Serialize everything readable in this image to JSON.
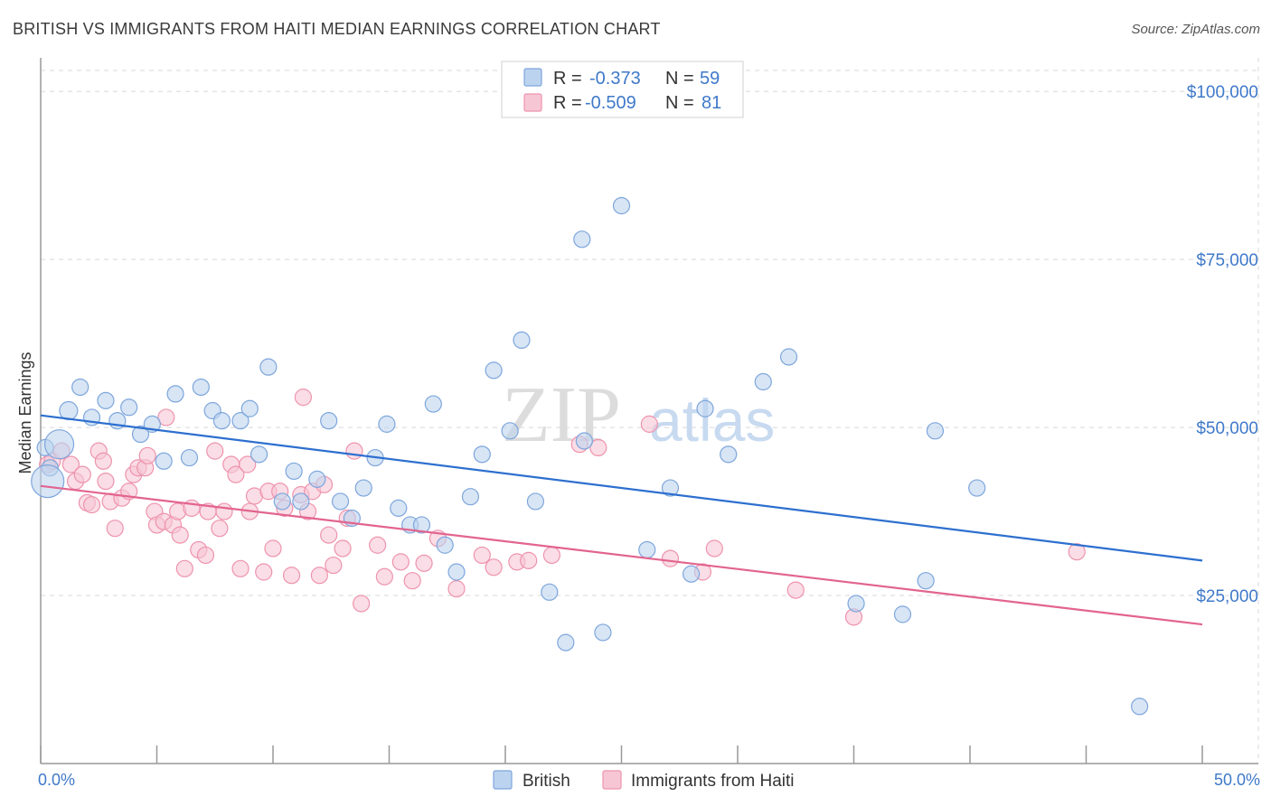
{
  "title": "BRITISH VS IMMIGRANTS FROM HAITI MEDIAN EARNINGS CORRELATION CHART",
  "source": "Source: ZipAtlas.com",
  "watermark": {
    "zip": "ZIP",
    "atlas": "atlas"
  },
  "colors": {
    "british_fill": "#bcd3ef",
    "british_stroke": "#7ea6dc",
    "british_line": "#2d6fcf",
    "haiti_fill": "#f6c6d5",
    "haiti_stroke": "#ee93ad",
    "haiti_line": "#e2648f",
    "grid": "#d8d8d8",
    "axis_text": "#3f79c9"
  },
  "legend": {
    "rows": [
      {
        "r_label": "R =",
        "r_value": "-0.373",
        "n_label": "N =",
        "n_value": "59"
      },
      {
        "r_label": "R =",
        "r_value": "-0.509",
        "n_label": "N =",
        "n_value": "81"
      }
    ]
  },
  "chart_data": {
    "type": "scatter",
    "title": "BRITISH VS IMMIGRANTS FROM HAITI MEDIAN EARNINGS CORRELATION CHART",
    "xlabel": "",
    "ylabel": "Median Earnings",
    "xlim": [
      0,
      50
    ],
    "ylim": [
      0,
      105000
    ],
    "x_tick_labels": [
      "0.0%",
      "50.0%"
    ],
    "y_ticks": [
      25000,
      50000,
      75000,
      100000
    ],
    "y_tick_labels": [
      "$25,000",
      "$50,000",
      "$75,000",
      "$100,000"
    ],
    "grid": true,
    "legend_position": "top-center",
    "series": [
      {
        "name": "British",
        "trend": {
          "x": [
            0,
            50
          ],
          "y": [
            51800,
            30200
          ]
        },
        "points": [
          [
            0.2,
            47000,
            9
          ],
          [
            0.4,
            44000,
            9
          ],
          [
            0.3,
            42000,
            18
          ],
          [
            0.8,
            47500,
            16
          ],
          [
            1.2,
            52500,
            10
          ],
          [
            1.7,
            56000,
            9
          ],
          [
            2.2,
            51500,
            9
          ],
          [
            2.8,
            54000,
            9
          ],
          [
            3.3,
            51000,
            9
          ],
          [
            3.8,
            53000,
            9
          ],
          [
            4.3,
            49000,
            9
          ],
          [
            4.8,
            50500,
            9
          ],
          [
            5.3,
            45000,
            9
          ],
          [
            5.8,
            55000,
            9
          ],
          [
            6.4,
            45500,
            9
          ],
          [
            6.9,
            56000,
            9
          ],
          [
            7.4,
            52500,
            9
          ],
          [
            7.8,
            51000,
            9
          ],
          [
            8.6,
            51000,
            9
          ],
          [
            9.0,
            52800,
            9
          ],
          [
            9.4,
            46000,
            9
          ],
          [
            9.8,
            59000,
            9
          ],
          [
            10.4,
            39000,
            9
          ],
          [
            10.9,
            43500,
            9
          ],
          [
            11.2,
            39000,
            9
          ],
          [
            11.9,
            42300,
            9
          ],
          [
            12.4,
            51000,
            9
          ],
          [
            12.9,
            39000,
            9
          ],
          [
            13.4,
            36500,
            9
          ],
          [
            13.9,
            41000,
            9
          ],
          [
            14.4,
            45500,
            9
          ],
          [
            14.9,
            50500,
            9
          ],
          [
            15.4,
            38000,
            9
          ],
          [
            15.9,
            35500,
            9
          ],
          [
            16.4,
            35500,
            9
          ],
          [
            16.9,
            53500,
            9
          ],
          [
            17.4,
            32500,
            9
          ],
          [
            17.9,
            28500,
            9
          ],
          [
            18.5,
            39700,
            9
          ],
          [
            19.0,
            46000,
            9
          ],
          [
            19.5,
            58500,
            9
          ],
          [
            20.2,
            49500,
            9
          ],
          [
            20.7,
            63000,
            9
          ],
          [
            21.3,
            39000,
            9
          ],
          [
            21.9,
            25500,
            9
          ],
          [
            22.6,
            18000,
            9
          ],
          [
            23.3,
            78000,
            9
          ],
          [
            23.4,
            48000,
            9
          ],
          [
            24.2,
            19500,
            9
          ],
          [
            25.0,
            83000,
            9
          ],
          [
            26.1,
            31800,
            9
          ],
          [
            27.1,
            41000,
            9
          ],
          [
            28.0,
            28200,
            9
          ],
          [
            28.6,
            52800,
            9
          ],
          [
            29.6,
            46000,
            9
          ],
          [
            31.1,
            56800,
            9
          ],
          [
            32.2,
            60500,
            9
          ],
          [
            35.1,
            23800,
            9
          ],
          [
            37.1,
            22200,
            9
          ],
          [
            38.1,
            27200,
            9
          ],
          [
            38.5,
            49500,
            9
          ],
          [
            40.3,
            41000,
            9
          ],
          [
            47.3,
            8500,
            9
          ]
        ]
      },
      {
        "name": "Immigrants from Haiti",
        "trend": {
          "x": [
            0,
            50
          ],
          "y": [
            41300,
            20700
          ]
        },
        "points": [
          [
            0.3,
            44500,
            9
          ],
          [
            0.5,
            45000,
            9
          ],
          [
            0.9,
            46500,
            9
          ],
          [
            1.3,
            44500,
            9
          ],
          [
            1.5,
            42000,
            9
          ],
          [
            1.8,
            43000,
            9
          ],
          [
            2.0,
            38800,
            9
          ],
          [
            2.2,
            38500,
            9
          ],
          [
            2.5,
            46500,
            9
          ],
          [
            2.7,
            45000,
            9
          ],
          [
            2.8,
            42000,
            9
          ],
          [
            3.0,
            39000,
            9
          ],
          [
            3.2,
            35000,
            9
          ],
          [
            3.5,
            39500,
            9
          ],
          [
            3.8,
            40500,
            9
          ],
          [
            4.0,
            43000,
            9
          ],
          [
            4.2,
            44000,
            9
          ],
          [
            4.5,
            44000,
            9
          ],
          [
            4.6,
            45800,
            9
          ],
          [
            4.9,
            37500,
            9
          ],
          [
            5.0,
            35500,
            9
          ],
          [
            5.3,
            36000,
            9
          ],
          [
            5.4,
            51500,
            9
          ],
          [
            5.7,
            35500,
            9
          ],
          [
            5.9,
            37500,
            9
          ],
          [
            6.0,
            34000,
            9
          ],
          [
            6.2,
            29000,
            9
          ],
          [
            6.5,
            38000,
            9
          ],
          [
            6.8,
            31800,
            9
          ],
          [
            7.1,
            31000,
            9
          ],
          [
            7.2,
            37500,
            9
          ],
          [
            7.5,
            46500,
            9
          ],
          [
            7.7,
            35000,
            9
          ],
          [
            7.9,
            37500,
            9
          ],
          [
            8.2,
            44500,
            9
          ],
          [
            8.4,
            43000,
            9
          ],
          [
            8.6,
            29000,
            9
          ],
          [
            8.9,
            44500,
            9
          ],
          [
            9.0,
            37500,
            9
          ],
          [
            9.2,
            39800,
            9
          ],
          [
            9.6,
            28500,
            9
          ],
          [
            9.8,
            40500,
            9
          ],
          [
            10.0,
            32000,
            9
          ],
          [
            10.3,
            40500,
            9
          ],
          [
            10.5,
            38000,
            9
          ],
          [
            10.8,
            28000,
            9
          ],
          [
            11.2,
            40000,
            9
          ],
          [
            11.3,
            54500,
            9
          ],
          [
            11.5,
            37500,
            9
          ],
          [
            11.7,
            40500,
            9
          ],
          [
            12.0,
            28000,
            9
          ],
          [
            12.2,
            41500,
            9
          ],
          [
            12.4,
            34000,
            9
          ],
          [
            12.6,
            29500,
            9
          ],
          [
            13.0,
            32000,
            9
          ],
          [
            13.2,
            36500,
            9
          ],
          [
            13.5,
            46500,
            9
          ],
          [
            13.8,
            23800,
            9
          ],
          [
            14.5,
            32500,
            9
          ],
          [
            14.8,
            27800,
            9
          ],
          [
            15.5,
            30000,
            9
          ],
          [
            16.0,
            27200,
            9
          ],
          [
            16.5,
            29800,
            9
          ],
          [
            17.1,
            33500,
            9
          ],
          [
            17.9,
            26000,
            9
          ],
          [
            19.0,
            31000,
            9
          ],
          [
            19.5,
            29200,
            9
          ],
          [
            20.5,
            30000,
            9
          ],
          [
            21.0,
            30200,
            9
          ],
          [
            22.0,
            31000,
            9
          ],
          [
            23.2,
            47500,
            9
          ],
          [
            24.0,
            47000,
            9
          ],
          [
            26.2,
            50500,
            9
          ],
          [
            27.1,
            30500,
            9
          ],
          [
            28.5,
            28500,
            9
          ],
          [
            29.0,
            32000,
            9
          ],
          [
            32.5,
            25800,
            9
          ],
          [
            35.0,
            21800,
            9
          ],
          [
            44.6,
            31500,
            9
          ]
        ]
      }
    ]
  }
}
